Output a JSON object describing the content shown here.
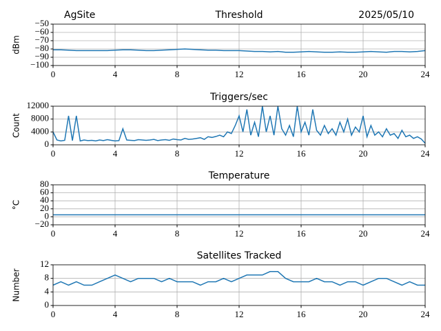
{
  "chart_data": [
    {
      "type": "line",
      "title": "Threshold",
      "site": "AgSite",
      "date": "2025/05/10",
      "ylabel": "dBm",
      "color": "#1f77b4",
      "grid": true,
      "xlim": [
        0,
        24
      ],
      "xticks": [
        0,
        4,
        8,
        12,
        16,
        20,
        24
      ],
      "ylim": [
        -100,
        -50
      ],
      "yticks": [
        {
          "value": -100,
          "label": "−100"
        },
        {
          "value": -90,
          "label": "−90"
        },
        {
          "value": -80,
          "label": "−80"
        },
        {
          "value": -70,
          "label": "−70"
        },
        {
          "value": -60,
          "label": "−60"
        },
        {
          "value": -50,
          "label": "−50"
        }
      ],
      "x": [
        0,
        0.5,
        1,
        1.5,
        2,
        2.5,
        3,
        3.5,
        4,
        4.5,
        5,
        5.5,
        6,
        6.5,
        7,
        7.5,
        8,
        8.5,
        9,
        9.5,
        10,
        10.5,
        11,
        11.5,
        12,
        12.5,
        13,
        13.5,
        14,
        14.5,
        15,
        15.5,
        16,
        16.5,
        17,
        17.5,
        18,
        18.5,
        19,
        19.5,
        20,
        20.5,
        21,
        21.5,
        22,
        22.5,
        23,
        23.5,
        24
      ],
      "values": [
        -81,
        -81,
        -81.5,
        -82,
        -82,
        -82,
        -82,
        -82,
        -81.5,
        -81,
        -81,
        -81.5,
        -82,
        -82,
        -81.5,
        -81,
        -80.5,
        -80,
        -80.5,
        -81,
        -81.5,
        -81.5,
        -82,
        -82,
        -82,
        -82.5,
        -83,
        -83,
        -83.5,
        -83,
        -84,
        -84,
        -83.5,
        -83,
        -83.5,
        -84,
        -84,
        -83.5,
        -84,
        -84,
        -83.5,
        -83,
        -83.5,
        -84,
        -83,
        -83,
        -83.5,
        -83,
        -82
      ]
    },
    {
      "type": "line",
      "title": "Triggers/sec",
      "ylabel": "Count",
      "color": "#1f77b4",
      "grid": true,
      "xlim": [
        0,
        24
      ],
      "xticks": [
        0,
        4,
        8,
        12,
        16,
        20,
        24
      ],
      "ylim": [
        0,
        12000
      ],
      "yticks": [
        0,
        4000,
        8000,
        12000
      ],
      "x": [
        0,
        0.25,
        0.5,
        0.75,
        1,
        1.25,
        1.5,
        1.75,
        2,
        2.25,
        2.5,
        2.75,
        3,
        3.25,
        3.5,
        3.75,
        4,
        4.25,
        4.5,
        4.75,
        5,
        5.25,
        5.5,
        5.75,
        6,
        6.25,
        6.5,
        6.75,
        7,
        7.25,
        7.5,
        7.75,
        8,
        8.25,
        8.5,
        8.75,
        9,
        9.25,
        9.5,
        9.75,
        10,
        10.25,
        10.5,
        10.75,
        11,
        11.25,
        11.5,
        11.75,
        12,
        12.25,
        12.5,
        12.75,
        13,
        13.25,
        13.5,
        13.75,
        14,
        14.25,
        14.5,
        14.75,
        15,
        15.25,
        15.5,
        15.75,
        16,
        16.25,
        16.5,
        16.75,
        17,
        17.25,
        17.5,
        17.75,
        18,
        18.25,
        18.5,
        18.75,
        19,
        19.25,
        19.5,
        19.75,
        20,
        20.25,
        20.5,
        20.75,
        21,
        21.25,
        21.5,
        21.75,
        22,
        22.25,
        22.5,
        22.75,
        23,
        23.25,
        23.5,
        23.75,
        24
      ],
      "values": [
        4000,
        1500,
        1200,
        1400,
        9000,
        1300,
        9000,
        1200,
        1500,
        1300,
        1400,
        1200,
        1500,
        1300,
        1600,
        1400,
        1200,
        1300,
        5000,
        1500,
        1400,
        1300,
        1600,
        1500,
        1400,
        1500,
        1700,
        1300,
        1500,
        1600,
        1400,
        1800,
        1600,
        1500,
        2000,
        1700,
        1800,
        2000,
        2200,
        1700,
        2500,
        2300,
        2600,
        3000,
        2500,
        4000,
        3500,
        6000,
        9000,
        4000,
        11000,
        3000,
        7000,
        2500,
        12000,
        4000,
        9000,
        3000,
        12000,
        5000,
        3000,
        6000,
        2500,
        12000,
        4000,
        7000,
        3000,
        11000,
        4500,
        3000,
        6000,
        3500,
        5000,
        3000,
        7000,
        4000,
        8000,
        3000,
        5500,
        4000,
        9000,
        2500,
        6000,
        3000,
        4000,
        2500,
        5000,
        3000,
        3500,
        2000,
        4500,
        2500,
        3000,
        2000,
        2500,
        1800,
        500
      ]
    },
    {
      "type": "line",
      "title": "Temperature",
      "ylabel": "°C",
      "color": "#1f77b4",
      "grid": true,
      "xlim": [
        0,
        24
      ],
      "xticks": [
        0,
        4,
        8,
        12,
        16,
        20,
        24
      ],
      "ylim": [
        -20,
        80
      ],
      "yticks": [
        {
          "value": -20,
          "label": "−20"
        },
        0,
        20,
        40,
        60,
        80
      ],
      "x": [
        0,
        24
      ],
      "values": [
        5,
        5
      ]
    },
    {
      "type": "line",
      "title": "Satellites Tracked",
      "ylabel": "Number",
      "color": "#1f77b4",
      "grid": true,
      "xlim": [
        0,
        24
      ],
      "xticks": [
        0,
        4,
        8,
        12,
        16,
        20,
        24
      ],
      "ylim": [
        0,
        12
      ],
      "yticks": [
        0,
        4,
        8,
        12
      ],
      "x": [
        0,
        0.5,
        1,
        1.5,
        2,
        2.5,
        3,
        3.5,
        4,
        4.5,
        5,
        5.5,
        6,
        6.5,
        7,
        7.5,
        8,
        8.5,
        9,
        9.5,
        10,
        10.5,
        11,
        11.5,
        12,
        12.5,
        13,
        13.5,
        14,
        14.5,
        15,
        15.5,
        16,
        16.5,
        17,
        17.5,
        18,
        18.5,
        19,
        19.5,
        20,
        20.5,
        21,
        21.5,
        22,
        22.5,
        23,
        23.5,
        24
      ],
      "values": [
        6,
        7,
        6,
        7,
        6,
        6,
        7,
        8,
        9,
        8,
        7,
        8,
        8,
        8,
        7,
        8,
        7,
        7,
        7,
        6,
        7,
        7,
        8,
        7,
        8,
        9,
        9,
        9,
        10,
        10,
        8,
        7,
        7,
        7,
        8,
        7,
        7,
        6,
        7,
        7,
        6,
        7,
        8,
        8,
        7,
        6,
        7,
        6,
        6
      ]
    }
  ]
}
